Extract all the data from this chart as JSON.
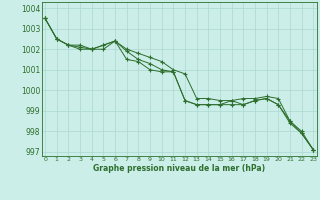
{
  "title": "Graphe pression niveau de la mer (hPa)",
  "background_color": "#cceee8",
  "grid_color": "#aad8d0",
  "line_color": "#2d6e2d",
  "x_labels": [
    "0",
    "1",
    "2",
    "3",
    "4",
    "5",
    "6",
    "7",
    "8",
    "9",
    "10",
    "11",
    "12",
    "13",
    "14",
    "15",
    "16",
    "17",
    "18",
    "19",
    "20",
    "21",
    "22",
    "23"
  ],
  "line1": [
    1003.5,
    1002.5,
    1002.2,
    1002.2,
    1002.0,
    1002.2,
    1002.4,
    1002.0,
    1001.8,
    1001.6,
    1001.4,
    1001.0,
    1000.8,
    999.6,
    999.6,
    999.5,
    999.5,
    999.6,
    999.6,
    999.7,
    999.6,
    998.5,
    998.0,
    997.1
  ],
  "line2": [
    1003.5,
    1002.5,
    1002.2,
    1002.1,
    1002.0,
    1002.2,
    1002.4,
    1001.9,
    1001.5,
    1001.3,
    1001.0,
    1000.9,
    999.5,
    999.3,
    999.3,
    999.3,
    999.5,
    999.3,
    999.5,
    999.6,
    999.3,
    998.5,
    997.9,
    997.1
  ],
  "line3": [
    1003.5,
    1002.5,
    1002.2,
    1002.0,
    1002.0,
    1002.0,
    1002.4,
    1001.5,
    1001.4,
    1001.0,
    1000.9,
    1000.9,
    999.5,
    999.3,
    999.3,
    999.3,
    999.3,
    999.3,
    999.5,
    999.6,
    999.3,
    998.4,
    997.9,
    997.1
  ],
  "ylim_min": 996.8,
  "ylim_max": 1004.3,
  "yticks": [
    997,
    998,
    999,
    1000,
    1001,
    1002,
    1003,
    1004
  ],
  "figwidth": 3.2,
  "figheight": 2.0,
  "dpi": 100
}
